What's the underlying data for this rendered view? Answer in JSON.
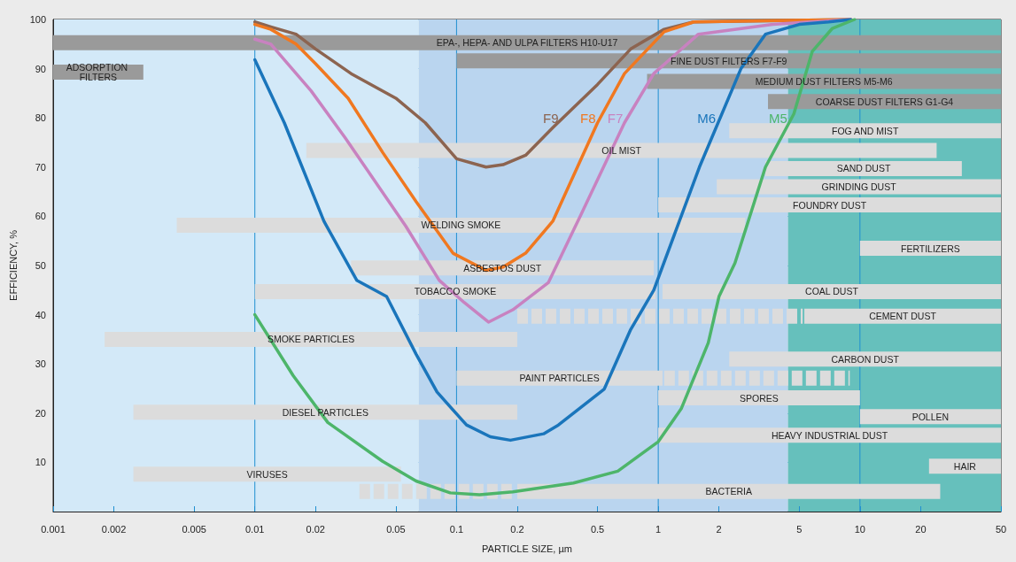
{
  "chart_data": {
    "type": "line",
    "xlabel": "PARTICLE SIZE, µm",
    "ylabel": "EFFICIENCY, %",
    "log": "x",
    "xlim": [
      0.001,
      50
    ],
    "ylim": [
      0,
      100
    ],
    "xticks": [
      0.001,
      0.002,
      0.005,
      0.01,
      0.02,
      0.05,
      0.1,
      0.2,
      0.5,
      1,
      2,
      5,
      10,
      20,
      50
    ],
    "yticks": [
      10,
      20,
      30,
      40,
      50,
      60,
      70,
      80,
      90,
      100
    ],
    "grid": true,
    "legend": false,
    "marker": "none",
    "bands": [
      {
        "axis": "x",
        "from": 0.001,
        "to": 0.065,
        "color": "#d3e9f8"
      },
      {
        "axis": "x",
        "from": 0.065,
        "to": 4.4,
        "color": "#bad5ef"
      },
      {
        "axis": "x",
        "from": 4.4,
        "to": 50,
        "color": "#66c0bc"
      }
    ],
    "series": [
      {
        "name": "EPA-, HEPA- AND ULPA FILTERS H10-U17",
        "x": [
          0.001,
          50
        ],
        "values": [
          95.3,
          95.3
        ],
        "color": "#9a9a9a"
      },
      {
        "name": "ADSORPTION FILTERS",
        "x": [
          0.001,
          0.0028
        ],
        "values": [
          89.3,
          89.3
        ],
        "color": "#9a9a9a"
      },
      {
        "name": "FINE DUST FILTERS F7-F9",
        "x": [
          0.1,
          50
        ],
        "values": [
          91.6,
          91.6
        ],
        "color": "#9a9a9a"
      },
      {
        "name": "MEDIUM DUST FILTERS M5-M6",
        "x": [
          0.88,
          50
        ],
        "values": [
          87.4,
          87.4
        ],
        "color": "#9a9a9a"
      },
      {
        "name": "COARSE DUST FILTERS G1-G4",
        "x": [
          3.5,
          50
        ],
        "values": [
          83.3,
          83.3
        ],
        "color": "#9a9a9a"
      },
      {
        "name": "FOG AND MIST",
        "x": [
          2.25,
          50
        ],
        "values": [
          77.4,
          77.4
        ],
        "color": "#dcdcdc"
      },
      {
        "name": "OIL MIST",
        "x": [
          0.018,
          24
        ],
        "values": [
          73.4,
          73.4
        ],
        "color": "#dcdcdc"
      },
      {
        "name": "SAND DUST",
        "x": [
          3.4,
          32
        ],
        "values": [
          69.7,
          69.7
        ],
        "color": "#dcdcdc"
      },
      {
        "name": "GRINDING DUST",
        "x": [
          1.95,
          50
        ],
        "values": [
          66,
          66
        ],
        "color": "#dcdcdc"
      },
      {
        "name": "FOUNDRY DUST",
        "x": [
          1,
          50
        ],
        "values": [
          62.3,
          62.3
        ],
        "color": "#dcdcdc"
      },
      {
        "name": "WELDING SMOKE",
        "x": [
          0.0041,
          2.7
        ],
        "values": [
          58.2,
          58.2
        ],
        "color": "#dcdcdc"
      },
      {
        "name": "FERTILIZERS",
        "x": [
          10,
          50
        ],
        "values": [
          53.5,
          53.5
        ],
        "color": "#dcdcdc"
      },
      {
        "name": "ASBESTOS DUST",
        "x": [
          0.03,
          0.95
        ],
        "values": [
          49.5,
          49.5
        ],
        "color": "#dcdcdc"
      },
      {
        "name": "TOBACCO SMOKE",
        "x": [
          0.01,
          0.97
        ],
        "values": [
          44.7,
          44.7
        ],
        "color": "#dcdcdc"
      },
      {
        "name": "COAL DUST",
        "x": [
          1.05,
          50
        ],
        "values": [
          44.7,
          44.7
        ],
        "color": "#dcdcdc"
      },
      {
        "name": "CEMENT DUST",
        "x": [
          5.3,
          50
        ],
        "values": [
          39.7,
          39.7
        ],
        "color": "#dcdcdc"
      },
      {
        "x": [
          0.2,
          5.2
        ],
        "values": [
          39.7,
          39.7
        ],
        "color": "#dcdcdc",
        "line_style": "dashed"
      },
      {
        "name": "SMOKE PARTICLES",
        "x": [
          0.0018,
          0.2
        ],
        "values": [
          35,
          35
        ],
        "color": "#dcdcdc"
      },
      {
        "name": "CARBON DUST",
        "x": [
          2.25,
          50
        ],
        "values": [
          31,
          31
        ],
        "color": "#dcdcdc"
      },
      {
        "name": "PAINT PARTICLES",
        "x": [
          0.1,
          1.05
        ],
        "values": [
          27.1,
          27.1
        ],
        "color": "#dcdcdc"
      },
      {
        "x": [
          1.07,
          8.9
        ],
        "values": [
          27.1,
          27.1
        ],
        "color": "#dcdcdc",
        "line_style": "dashed"
      },
      {
        "name": "SPORES",
        "x": [
          1,
          10
        ],
        "values": [
          23.1,
          23.1
        ],
        "color": "#dcdcdc"
      },
      {
        "name": "DIESEL PARTICLES",
        "x": [
          0.0025,
          0.2
        ],
        "values": [
          20.2,
          20.2
        ],
        "color": "#dcdcdc"
      },
      {
        "name": "POLLEN",
        "x": [
          10,
          50
        ],
        "values": [
          19.3,
          19.3
        ],
        "color": "#dcdcdc"
      },
      {
        "name": "HEAVY INDUSTRIAL DUST",
        "x": [
          1,
          50
        ],
        "values": [
          15.5,
          15.5
        ],
        "color": "#dcdcdc"
      },
      {
        "name": "HAIR",
        "x": [
          22,
          50
        ],
        "values": [
          9.2,
          9.2
        ],
        "color": "#dcdcdc"
      },
      {
        "name": "VIRUSES",
        "x": [
          0.0025,
          0.053
        ],
        "values": [
          7.6,
          7.6
        ],
        "color": "#dcdcdc"
      },
      {
        "name": "BACTERIA",
        "x": [
          0.2,
          25
        ],
        "values": [
          4.1,
          4.1
        ],
        "color": "#dcdcdc"
      },
      {
        "x": [
          0.033,
          0.19
        ],
        "values": [
          4.1,
          4.1
        ],
        "color": "#dcdcdc",
        "line_style": "dashed"
      },
      {
        "name": "F9",
        "color": "#8c6450",
        "x": [
          0.01,
          0.012,
          0.016,
          0.02,
          0.03,
          0.05,
          0.07,
          0.1,
          0.14,
          0.17,
          0.22,
          0.3,
          0.5,
          0.73,
          1.07,
          1.5,
          9
        ],
        "values": [
          99.5,
          98.5,
          97,
          94,
          89,
          84,
          79,
          71.7,
          70,
          70.5,
          72.4,
          78,
          86.8,
          94,
          98,
          99.5,
          100
        ]
      },
      {
        "name": "F8",
        "color": "#f07820",
        "x": [
          0.01,
          0.012,
          0.016,
          0.02,
          0.029,
          0.043,
          0.063,
          0.096,
          0.14,
          0.17,
          0.22,
          0.3,
          0.5,
          0.68,
          1.07,
          1.5,
          9
        ],
        "values": [
          99,
          98,
          95,
          91,
          84,
          73,
          63,
          52.5,
          49,
          49.7,
          52.5,
          59,
          79,
          89,
          97.5,
          99.5,
          100
        ]
      },
      {
        "name": "F7",
        "color": "#c882c0",
        "x": [
          0.01,
          0.012,
          0.019,
          0.028,
          0.056,
          0.082,
          0.109,
          0.144,
          0.19,
          0.285,
          0.41,
          0.68,
          0.95,
          1.58,
          3.7,
          9
        ],
        "values": [
          96,
          95,
          85.5,
          76,
          58,
          47,
          42.5,
          38.5,
          41,
          46.5,
          60,
          79,
          89,
          97,
          99,
          100
        ]
      },
      {
        "name": "M6",
        "color": "#1a75bb",
        "x": [
          0.01,
          0.014,
          0.022,
          0.032,
          0.045,
          0.063,
          0.08,
          0.112,
          0.147,
          0.185,
          0.27,
          0.32,
          0.54,
          0.73,
          0.95,
          1.6,
          2.57,
          3.4,
          5,
          7,
          9
        ],
        "values": [
          91.8,
          79,
          59,
          47,
          43.7,
          32,
          24.3,
          17.6,
          15.2,
          14.5,
          15.8,
          17.6,
          24.9,
          37,
          45,
          70,
          90,
          97,
          99,
          99.5,
          100
        ]
      },
      {
        "name": "M5",
        "color": "#4db56a",
        "x": [
          0.01,
          0.0155,
          0.023,
          0.043,
          0.063,
          0.093,
          0.13,
          0.19,
          0.38,
          0.63,
          1,
          1.3,
          1.77,
          2,
          2.4,
          3.4,
          4.7,
          5.8,
          7.3,
          9.4
        ],
        "values": [
          40,
          27.6,
          18.1,
          10.2,
          6.2,
          3.8,
          3.4,
          4,
          5.8,
          8.2,
          14.2,
          20.9,
          34.3,
          43.7,
          50.5,
          70,
          80.8,
          93.5,
          98.2,
          100
        ]
      }
    ]
  }
}
